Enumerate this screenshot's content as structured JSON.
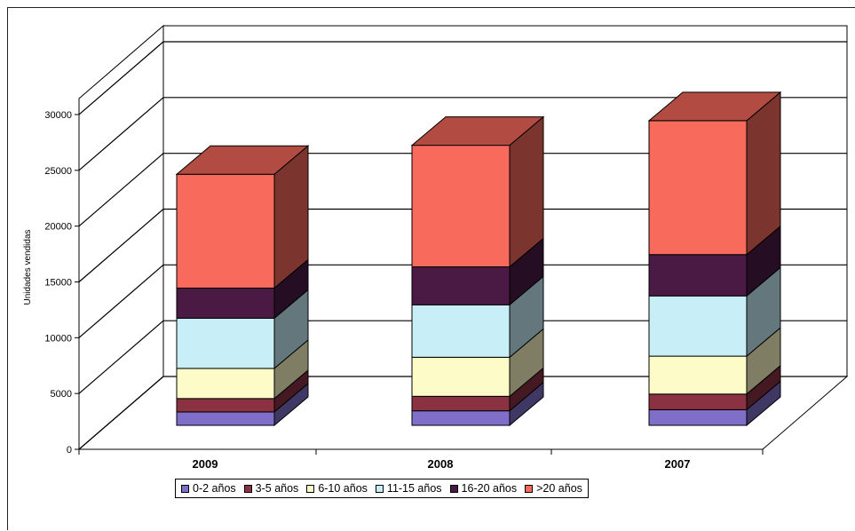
{
  "chart_data": {
    "type": "bar",
    "stacked": true,
    "three_d": true,
    "title": "",
    "xlabel": "",
    "ylabel": "Unidades vendidas",
    "categories": [
      "2009",
      "2008",
      "2007"
    ],
    "ylim": [
      0,
      30000
    ],
    "yticks": [
      "0",
      "5000",
      "10000",
      "15000",
      "20000",
      "25000",
      "30000"
    ],
    "grid": true,
    "legend_position": "bottom",
    "series": [
      {
        "name": "0-2 años",
        "color": "#7f6fc8",
        "values": [
          1200,
          1300,
          1400
        ]
      },
      {
        "name": "3-5 años",
        "color": "#8a3242",
        "values": [
          1200,
          1300,
          1400
        ]
      },
      {
        "name": "6-10 años",
        "color": "#fdfbc8",
        "values": [
          2700,
          3500,
          3400
        ]
      },
      {
        "name": "11-15 años",
        "color": "#c8eef7",
        "values": [
          4500,
          4700,
          5400
        ]
      },
      {
        "name": "16-20 años",
        "color": "#4a1a45",
        "values": [
          2700,
          3400,
          3700
        ]
      },
      {
        "name": ">20 años",
        "color": "#f76a5c",
        "values": [
          10200,
          10900,
          12000
        ]
      }
    ]
  }
}
